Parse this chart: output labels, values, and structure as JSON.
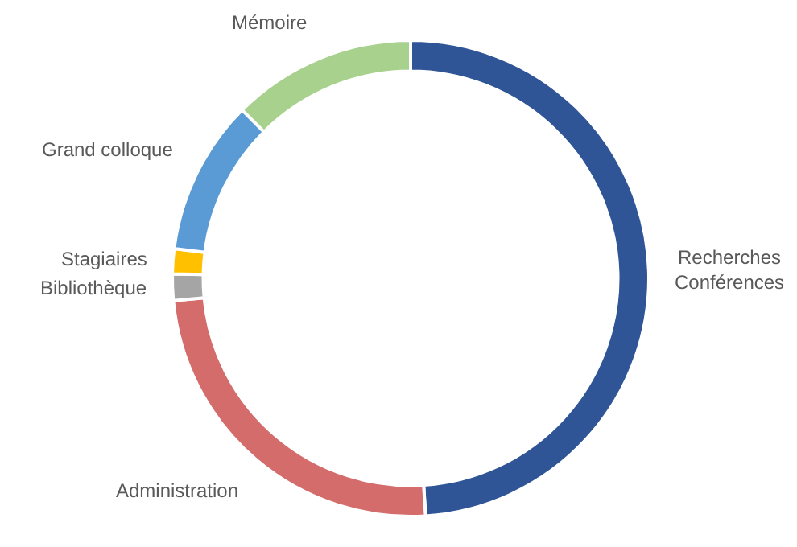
{
  "chart_data": {
    "type": "donut",
    "categories": [
      "Recherches Conférences",
      "Administration",
      "Bibliothèque",
      "Stagiaires",
      "Grand colloque",
      "Mémoire"
    ],
    "values": [
      49,
      24.5,
      1.8,
      1.7,
      10.5,
      12.5
    ],
    "colors": [
      "#2f5597",
      "#d46c6c",
      "#a5a5a5",
      "#ffc000",
      "#5b9bd5",
      "#a9d18e"
    ],
    "legend": false
  }
}
